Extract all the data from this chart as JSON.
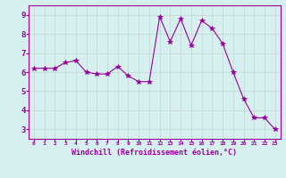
{
  "x": [
    0,
    1,
    2,
    3,
    4,
    5,
    6,
    7,
    8,
    9,
    10,
    11,
    12,
    13,
    14,
    15,
    16,
    17,
    18,
    19,
    20,
    21,
    22,
    23
  ],
  "y": [
    6.2,
    6.2,
    6.2,
    6.5,
    6.6,
    6.0,
    5.9,
    5.9,
    6.3,
    5.8,
    5.5,
    5.5,
    8.9,
    7.6,
    8.8,
    7.4,
    8.7,
    8.3,
    7.5,
    6.0,
    4.6,
    3.6,
    3.6,
    3.0
  ],
  "line_color": "#990099",
  "marker": "*",
  "marker_size": 4,
  "bg_color": "#d6f0f0",
  "grid_color": "#c8d8d8",
  "xlabel": "Windchill (Refroidissement éolien,°C)",
  "xlabel_color": "#990099",
  "tick_color": "#990099",
  "spine_color": "#990099",
  "ylim": [
    2.5,
    9.5
  ],
  "xlim": [
    -0.5,
    23.5
  ],
  "yticks": [
    3,
    4,
    5,
    6,
    7,
    8,
    9
  ],
  "xticks": [
    0,
    1,
    2,
    3,
    4,
    5,
    6,
    7,
    8,
    9,
    10,
    11,
    12,
    13,
    14,
    15,
    16,
    17,
    18,
    19,
    20,
    21,
    22,
    23
  ],
  "figsize": [
    3.2,
    2.0
  ],
  "dpi": 100
}
